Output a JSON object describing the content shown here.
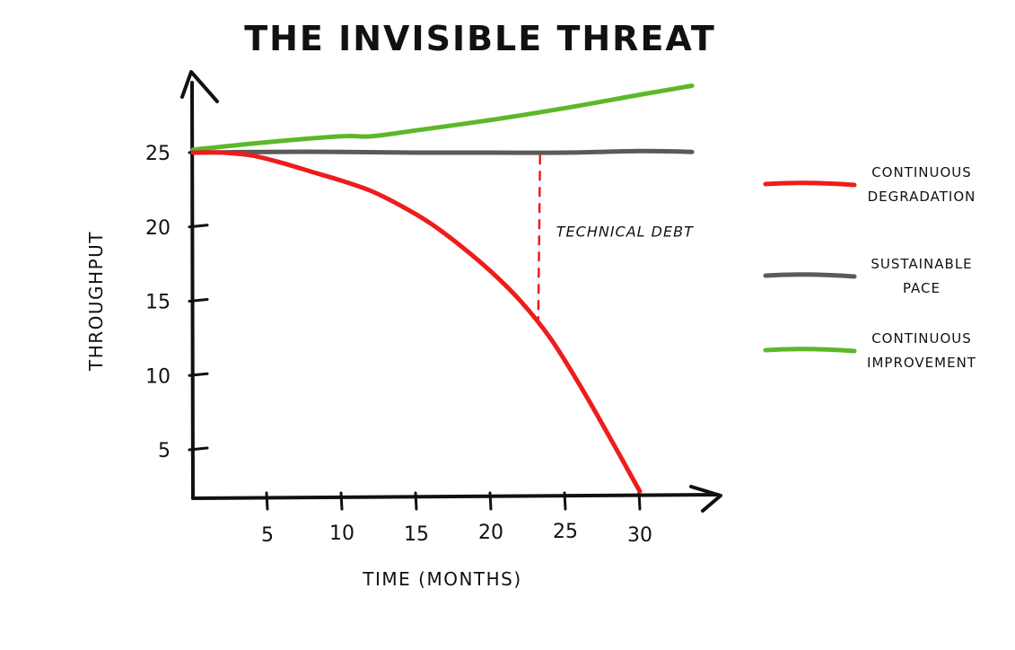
{
  "chart_data": {
    "type": "line",
    "title": "THE INVISIBLE THREAT",
    "xlabel": "TIME (MONTHS)",
    "ylabel": "THROUGHPUT",
    "xlim": [
      0,
      35
    ],
    "ylim": [
      2,
      28
    ],
    "x_ticks": [
      5,
      10,
      15,
      20,
      25,
      30
    ],
    "y_ticks": [
      5,
      10,
      15,
      20,
      25
    ],
    "grid": false,
    "legend_position": "right",
    "series": [
      {
        "name": "CONTINUOUS DEGRADATION",
        "color": "#ee1c1c",
        "x": [
          0,
          2,
          4,
          6,
          8,
          10,
          12,
          14,
          16,
          18,
          20,
          22,
          24,
          26,
          28,
          29,
          30
        ],
        "y": [
          25,
          25,
          24.8,
          24.3,
          23.7,
          23.1,
          22.4,
          21.4,
          20.2,
          18.7,
          17.0,
          15.0,
          12.5,
          9.3,
          5.8,
          4.0,
          2.2
        ]
      },
      {
        "name": "SUSTAINABLE PACE",
        "color": "#5a5a5a",
        "x": [
          0,
          5,
          10,
          15,
          20,
          25,
          30,
          33.5
        ],
        "y": [
          25,
          25.05,
          25.05,
          25.0,
          25.0,
          25.0,
          25.1,
          25.05
        ]
      },
      {
        "name": "CONTINUOUS IMPROVEMENT",
        "color": "#5cb82a",
        "x": [
          0,
          5,
          10,
          12,
          15,
          20,
          25,
          30,
          33.5
        ],
        "y": [
          25.2,
          25.7,
          26.1,
          26.1,
          26.5,
          27.2,
          28.0,
          28.9,
          29.5
        ]
      }
    ],
    "annotations": [
      {
        "text": "TECHNICAL DEBT",
        "x": 23.3,
        "y_from": 24.8,
        "y_to": 13.8,
        "color": "#ee1c1c"
      }
    ]
  }
}
